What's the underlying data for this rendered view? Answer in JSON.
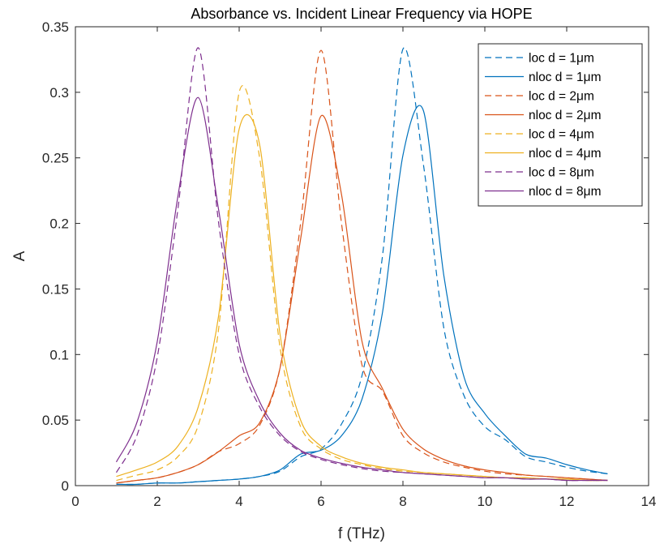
{
  "chart_data": {
    "type": "line",
    "title": "Absorbance vs. Incident Linear Frequency via HOPE",
    "xlabel": "f (THz)",
    "ylabel": "A",
    "xlim": [
      0,
      14
    ],
    "ylim": [
      0,
      0.35
    ],
    "xticks": [
      0,
      2,
      4,
      6,
      8,
      10,
      12,
      14
    ],
    "xtick_labels": [
      "0",
      "2",
      "4",
      "6",
      "8",
      "10",
      "12",
      "14"
    ],
    "yticks": [
      0,
      0.05,
      0.1,
      0.15,
      0.2,
      0.25,
      0.3,
      0.35
    ],
    "ytick_labels": [
      "0",
      "0.05",
      "0.1",
      "0.15",
      "0.2",
      "0.25",
      "0.3",
      "0.35"
    ],
    "grid": false,
    "legend_position": "top-right",
    "x": [
      1,
      1.5,
      2,
      2.5,
      3,
      3.5,
      4,
      4.5,
      5,
      5.5,
      6,
      6.5,
      7,
      7.5,
      8,
      8.5,
      9,
      9.5,
      10,
      10.5,
      11,
      11.5,
      12,
      12.5,
      13
    ],
    "series": [
      {
        "name": "loc d = 1μm",
        "color": "#0072BD",
        "dash": true,
        "values": [
          0.001,
          0.001,
          0.002,
          0.002,
          0.003,
          0.004,
          0.005,
          0.007,
          0.011,
          0.022,
          0.028,
          0.047,
          0.084,
          0.175,
          0.333,
          0.245,
          0.12,
          0.068,
          0.045,
          0.035,
          0.022,
          0.018,
          0.014,
          0.011,
          0.009
        ]
      },
      {
        "name": "nloc d = 1μm",
        "color": "#0072BD",
        "dash": false,
        "values": [
          0.001,
          0.001,
          0.002,
          0.002,
          0.003,
          0.004,
          0.005,
          0.007,
          0.012,
          0.024,
          0.027,
          0.038,
          0.066,
          0.132,
          0.252,
          0.286,
          0.16,
          0.082,
          0.055,
          0.038,
          0.024,
          0.021,
          0.016,
          0.012,
          0.009
        ]
      },
      {
        "name": "loc d = 2μm",
        "color": "#D95319",
        "dash": true,
        "values": [
          0.002,
          0.004,
          0.006,
          0.01,
          0.016,
          0.026,
          0.032,
          0.046,
          0.09,
          0.2,
          0.332,
          0.2,
          0.092,
          0.072,
          0.038,
          0.025,
          0.018,
          0.014,
          0.011,
          0.009,
          0.008,
          0.007,
          0.006,
          0.005,
          0.004
        ]
      },
      {
        "name": "nloc d = 2μm",
        "color": "#D95319",
        "dash": false,
        "values": [
          0.002,
          0.004,
          0.006,
          0.01,
          0.016,
          0.026,
          0.038,
          0.048,
          0.09,
          0.188,
          0.282,
          0.222,
          0.11,
          0.074,
          0.043,
          0.028,
          0.02,
          0.015,
          0.012,
          0.01,
          0.008,
          0.007,
          0.006,
          0.005,
          0.004
        ]
      },
      {
        "name": "loc d = 4μm",
        "color": "#EDB120",
        "dash": true,
        "values": [
          0.004,
          0.008,
          0.012,
          0.022,
          0.046,
          0.12,
          0.3,
          0.25,
          0.105,
          0.045,
          0.028,
          0.02,
          0.016,
          0.013,
          0.011,
          0.01,
          0.009,
          0.008,
          0.007,
          0.006,
          0.006,
          0.005,
          0.005,
          0.004,
          0.004
        ]
      },
      {
        "name": "nloc d = 4μm",
        "color": "#EDB120",
        "dash": false,
        "values": [
          0.007,
          0.012,
          0.018,
          0.03,
          0.06,
          0.13,
          0.272,
          0.26,
          0.115,
          0.05,
          0.03,
          0.022,
          0.017,
          0.014,
          0.012,
          0.01,
          0.009,
          0.008,
          0.007,
          0.006,
          0.006,
          0.005,
          0.005,
          0.004,
          0.004
        ]
      },
      {
        "name": "loc d = 8μm",
        "color": "#7E2F8E",
        "dash": true,
        "values": [
          0.01,
          0.038,
          0.098,
          0.21,
          0.334,
          0.2,
          0.1,
          0.06,
          0.038,
          0.026,
          0.02,
          0.016,
          0.013,
          0.011,
          0.01,
          0.009,
          0.008,
          0.007,
          0.006,
          0.006,
          0.005,
          0.005,
          0.004,
          0.004,
          0.004
        ]
      },
      {
        "name": "nloc d = 8μm",
        "color": "#7E2F8E",
        "dash": false,
        "values": [
          0.018,
          0.048,
          0.11,
          0.22,
          0.296,
          0.21,
          0.108,
          0.064,
          0.04,
          0.027,
          0.021,
          0.017,
          0.014,
          0.012,
          0.01,
          0.009,
          0.008,
          0.007,
          0.006,
          0.006,
          0.005,
          0.005,
          0.004,
          0.004,
          0.004
        ]
      }
    ]
  }
}
